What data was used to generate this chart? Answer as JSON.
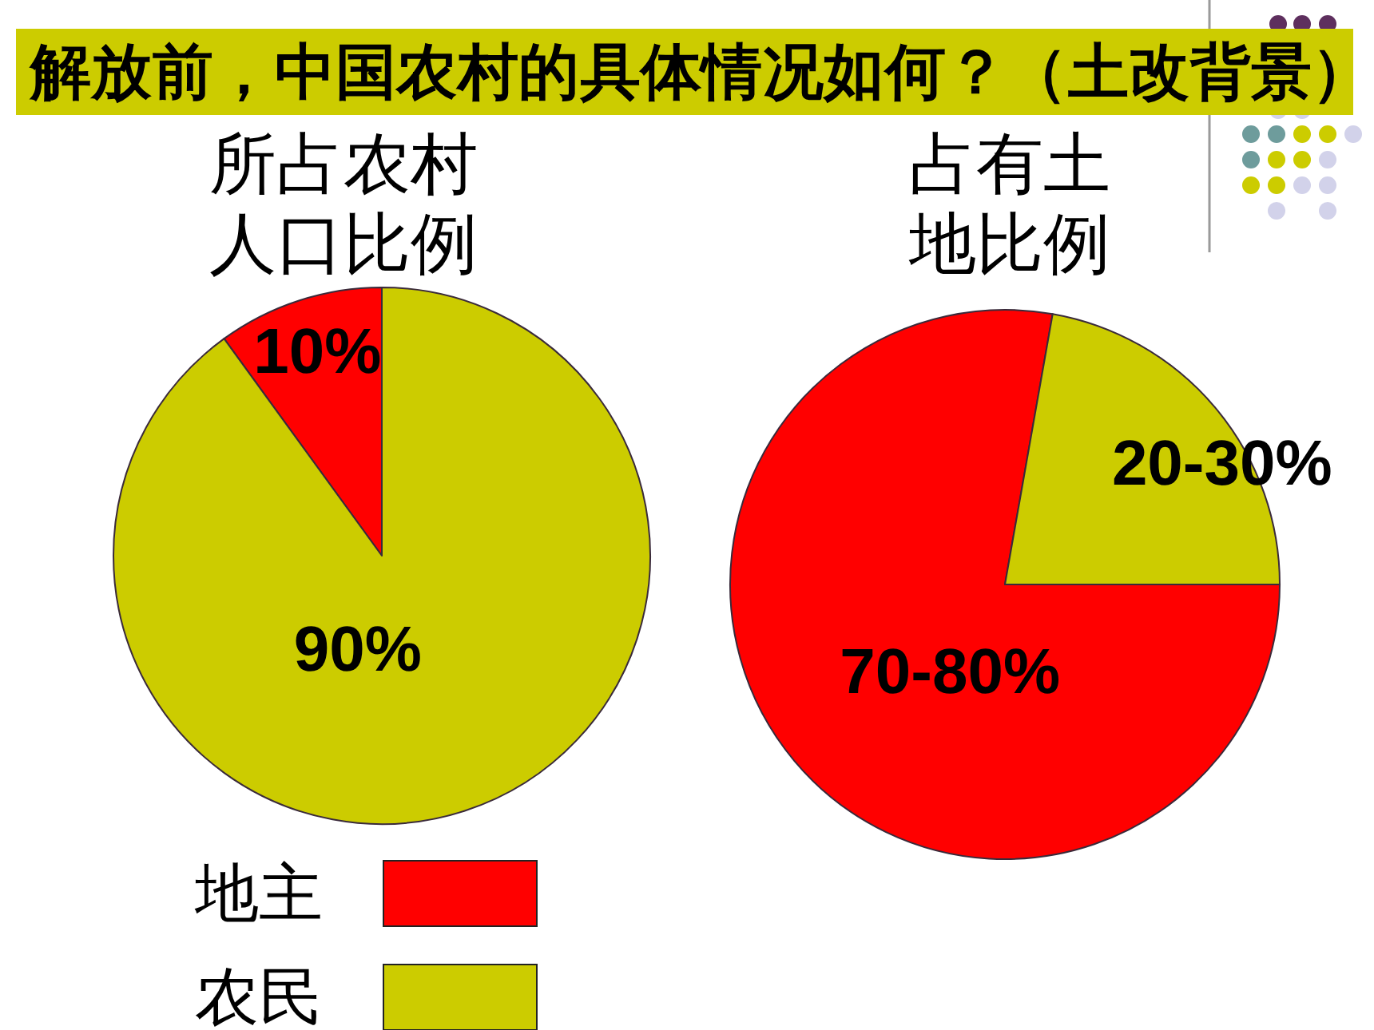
{
  "chart_data": [
    {
      "type": "pie",
      "title": "所占农村人口比例",
      "categories": [
        "地主",
        "农民"
      ],
      "values": [
        10,
        90
      ],
      "colors": [
        "#ff0000",
        "#cccc00"
      ],
      "value_labels": [
        "10%",
        "90%"
      ],
      "legend": "bottom",
      "annotations": [
        "解放前，中国农村的具体情况如何？（土改背景）"
      ]
    },
    {
      "type": "pie",
      "title": "占有土地比例",
      "categories": [
        null,
        null
      ],
      "values": [
        70,
        20
      ],
      "colors": [
        "#ff0000",
        "#cccc00"
      ],
      "value_labels": [
        "70-80%",
        "20-30%"
      ]
    }
  ]
}
